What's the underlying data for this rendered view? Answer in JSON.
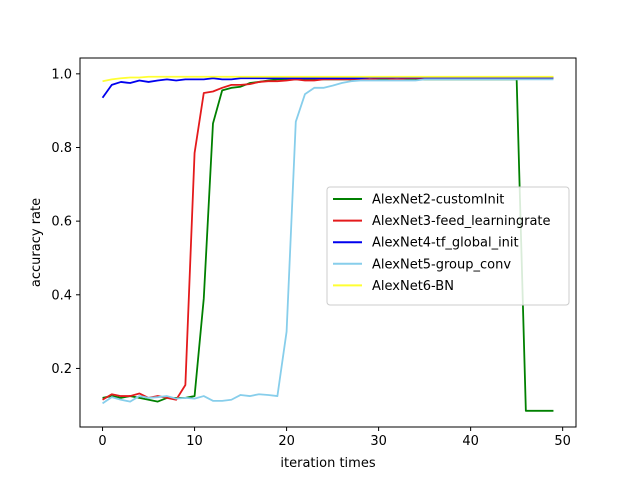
{
  "chart_data": {
    "type": "line",
    "title": "",
    "xlabel": "iteration times",
    "ylabel": "accuracy rate",
    "xlim": [
      -2.45,
      51.45
    ],
    "ylim": [
      0.041,
      1.043
    ],
    "xticks": [
      0,
      10,
      20,
      30,
      40,
      50
    ],
    "yticks": [
      0.2,
      0.4,
      0.6,
      0.8,
      1.0
    ],
    "xtick_labels": [
      "0",
      "10",
      "20",
      "30",
      "40",
      "50"
    ],
    "ytick_labels": [
      "0.2",
      "0.4",
      "0.6",
      "0.8",
      "1.0"
    ],
    "grid": false,
    "legend_position": "center-right",
    "x": [
      0,
      1,
      2,
      3,
      4,
      5,
      6,
      7,
      8,
      9,
      10,
      11,
      12,
      13,
      14,
      15,
      16,
      17,
      18,
      19,
      20,
      21,
      22,
      23,
      24,
      25,
      26,
      27,
      28,
      29,
      30,
      31,
      32,
      33,
      34,
      35,
      36,
      37,
      38,
      39,
      40,
      41,
      42,
      43,
      44,
      45,
      46,
      47,
      48,
      49
    ],
    "series": [
      {
        "name": "AlexNet2-customInit",
        "color": "#008000",
        "values": [
          0.12,
          0.125,
          0.12,
          0.125,
          0.12,
          0.115,
          0.11,
          0.12,
          0.12,
          0.12,
          0.125,
          0.39,
          0.865,
          0.955,
          0.962,
          0.965,
          0.975,
          0.978,
          0.982,
          0.985,
          0.985,
          0.985,
          0.985,
          0.985,
          0.985,
          0.985,
          0.985,
          0.985,
          0.985,
          0.985,
          0.985,
          0.985,
          0.985,
          0.985,
          0.985,
          0.985,
          0.985,
          0.985,
          0.985,
          0.985,
          0.985,
          0.985,
          0.985,
          0.985,
          0.985,
          0.985,
          0.085,
          0.085,
          0.085,
          0.085
        ]
      },
      {
        "name": "AlexNet3-feed_learningrate",
        "color": "#e41a1c",
        "values": [
          0.115,
          0.13,
          0.125,
          0.125,
          0.132,
          0.12,
          0.125,
          0.12,
          0.115,
          0.155,
          0.785,
          0.948,
          0.952,
          0.962,
          0.97,
          0.97,
          0.972,
          0.978,
          0.98,
          0.98,
          0.982,
          0.985,
          0.982,
          0.982,
          0.985,
          0.985,
          0.985,
          0.985,
          0.985,
          0.985,
          0.988,
          0.988,
          0.985,
          0.988,
          0.988,
          0.988,
          0.988,
          0.988,
          0.988,
          0.988,
          0.988,
          0.988,
          0.988,
          0.988,
          0.988,
          0.988,
          0.988,
          0.988,
          0.988,
          0.988
        ]
      },
      {
        "name": "AlexNet4-tf_global_init",
        "color": "#0000ee",
        "values": [
          0.935,
          0.97,
          0.978,
          0.975,
          0.982,
          0.978,
          0.982,
          0.985,
          0.982,
          0.985,
          0.985,
          0.985,
          0.988,
          0.985,
          0.985,
          0.988,
          0.988,
          0.988,
          0.988,
          0.988,
          0.988,
          0.988,
          0.988,
          0.988,
          0.988,
          0.988,
          0.988,
          0.988,
          0.988,
          0.99,
          0.99,
          0.99,
          0.99,
          0.99,
          0.99,
          0.99,
          0.99,
          0.99,
          0.99,
          0.99,
          0.99,
          0.99,
          0.99,
          0.99,
          0.99,
          0.99,
          0.99,
          0.99,
          0.99,
          0.99
        ]
      },
      {
        "name": "AlexNet5-group_conv",
        "color": "#87ceeb",
        "values": [
          0.105,
          0.122,
          0.115,
          0.11,
          0.125,
          0.12,
          0.122,
          0.125,
          0.118,
          0.12,
          0.118,
          0.125,
          0.112,
          0.112,
          0.115,
          0.128,
          0.125,
          0.13,
          0.128,
          0.125,
          0.3,
          0.87,
          0.945,
          0.962,
          0.962,
          0.968,
          0.975,
          0.98,
          0.982,
          0.982,
          0.982,
          0.982,
          0.982,
          0.982,
          0.982,
          0.985,
          0.985,
          0.985,
          0.985,
          0.985,
          0.985,
          0.985,
          0.985,
          0.985,
          0.985,
          0.985,
          0.985,
          0.985,
          0.985,
          0.985
        ]
      },
      {
        "name": "AlexNet6-BN",
        "color": "#ffff33",
        "values": [
          0.98,
          0.985,
          0.988,
          0.99,
          0.99,
          0.992,
          0.992,
          0.992,
          0.992,
          0.992,
          0.992,
          0.992,
          0.992,
          0.992,
          0.992,
          0.992,
          0.992,
          0.992,
          0.992,
          0.992,
          0.992,
          0.992,
          0.992,
          0.992,
          0.992,
          0.992,
          0.992,
          0.992,
          0.992,
          0.992,
          0.992,
          0.992,
          0.992,
          0.992,
          0.992,
          0.992,
          0.992,
          0.992,
          0.992,
          0.992,
          0.992,
          0.992,
          0.992,
          0.992,
          0.992,
          0.992,
          0.992,
          0.992,
          0.992,
          0.992
        ]
      }
    ]
  }
}
